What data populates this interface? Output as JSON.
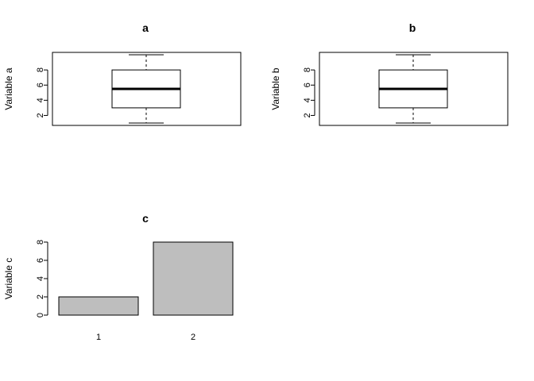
{
  "chart_data": [
    {
      "type": "boxplot",
      "title": "a",
      "ylabel": "Variable a",
      "xlabel": "",
      "ylim": [
        1,
        10
      ],
      "yticks": [
        2,
        4,
        6,
        8
      ],
      "stats": {
        "min": 1,
        "q1": 3,
        "median": 5.5,
        "q3": 8,
        "max": 10
      }
    },
    {
      "type": "boxplot",
      "title": "b",
      "ylabel": "Variable b",
      "xlabel": "",
      "ylim": [
        1,
        10
      ],
      "yticks": [
        2,
        4,
        6,
        8
      ],
      "stats": {
        "min": 1,
        "q1": 3,
        "median": 5.5,
        "q3": 8,
        "max": 10
      }
    },
    {
      "type": "bar",
      "title": "c",
      "ylabel": "Variable c",
      "xlabel": "",
      "categories": [
        "1",
        "2"
      ],
      "values": [
        2,
        8
      ],
      "ylim": [
        0,
        8
      ],
      "yticks": [
        0,
        2,
        4,
        6,
        8
      ],
      "bar_color": "#bebebe"
    }
  ]
}
